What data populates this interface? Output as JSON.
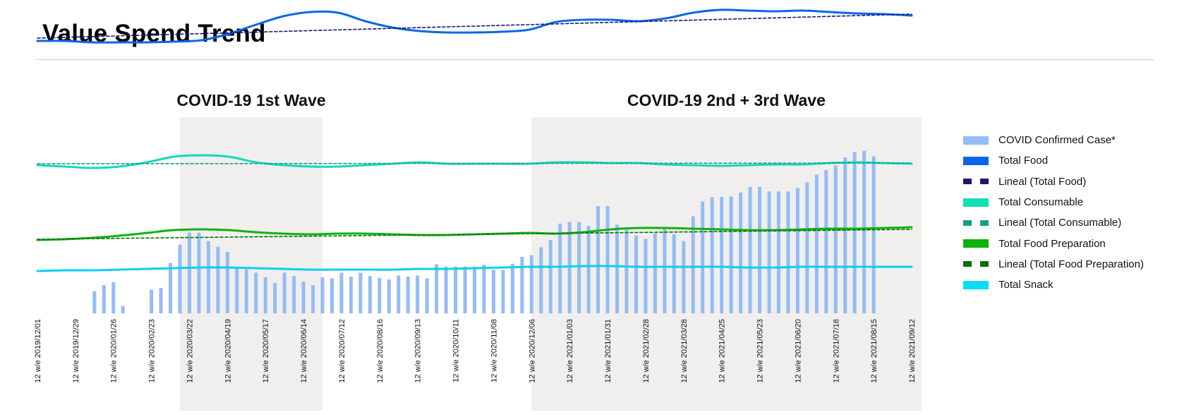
{
  "title": "Value Spend Trend",
  "chart_data": {
    "type": "bar+line",
    "title": "Value Spend Trend",
    "xlabel": "",
    "ylabel": "",
    "grid": false,
    "legend_position": "right",
    "shaded_periods": [
      {
        "label": "COVID-19 1st Wave",
        "start": "2020/03/15",
        "end": "2020/06/28"
      },
      {
        "label": "COVID-19 2nd + 3rd Wave",
        "start": "2020/11/29",
        "end": "2021/09/12"
      }
    ],
    "tick_labels": [
      "12 w/e 2019/12/01",
      "12 w/e 2019/12/29",
      "12 w/e 2020/01/26",
      "12 w/e 2020/02/23",
      "12 w/e 2020/03/22",
      "12 w/e 2020/04/19",
      "12 w/e 2020/05/17",
      "12 w/e 2020/06/14",
      "12 w/e 2020/07/12",
      "12 w/e 2020/08/16",
      "12 w/e 2020/09/13",
      "12 w/e 2020/10/11",
      "12 w/e 2020/11/08",
      "12 w/e 2020/12/06",
      "12 w/e 2021/01/03",
      "12 w/e 2021/01/31",
      "12 w/e 2021/02/28",
      "12 w/e 2021/03/28",
      "12 w/e 2021/04/25",
      "12 w/e 2021/05/23",
      "12 w/e 2021/06/20",
      "12 w/e 2021/07/18",
      "12 w/e 2021/08/15",
      "12 w/e 2021/09/12"
    ],
    "week_count": 93,
    "bar_series": {
      "name": "COVID Confirmed Case*",
      "color": "#94bcf6",
      "start_week": 6,
      "values": [
        39,
        50,
        55,
        13,
        0,
        0,
        42,
        45,
        89,
        122,
        143,
        143,
        128,
        118,
        109,
        80,
        78,
        72,
        64,
        54,
        72,
        66,
        56,
        50,
        64,
        62,
        72,
        65,
        72,
        66,
        63,
        60,
        67,
        65,
        67,
        62,
        87,
        83,
        83,
        83,
        83,
        86,
        77,
        77,
        88,
        100,
        103,
        117,
        130,
        159,
        162,
        162,
        155,
        190,
        190,
        157,
        148,
        138,
        132,
        142,
        150,
        140,
        128,
        172,
        198,
        206,
        206,
        207,
        214,
        224,
        224,
        216,
        216,
        216,
        222,
        232,
        246,
        254,
        262,
        276,
        286,
        288,
        278
      ]
    },
    "line_series": [
      {
        "name": "Total Food",
        "color": "#0a66e8",
        "values": [
          172,
          172,
          170,
          170,
          170,
          171,
          173,
          182,
          195,
          207,
          213,
          212,
          200,
          191,
          186,
          184,
          184,
          185,
          188,
          199,
          202,
          202,
          200,
          204,
          212,
          216,
          215,
          214,
          215,
          213,
          211,
          210,
          208
        ]
      },
      {
        "name": "Lineal (Total Food)",
        "color": "#1a1a6e",
        "dashed": true,
        "values": [
          176,
          210
        ]
      },
      {
        "name": "Total Consumable",
        "color": "#12d9b6",
        "values": [
          88,
          86,
          84,
          86,
          92,
          100,
          102,
          100,
          92,
          88,
          86,
          86,
          88,
          90,
          92,
          90,
          90,
          90,
          90,
          92,
          92,
          91,
          91,
          89,
          88,
          87,
          88,
          89,
          89,
          91,
          92,
          91,
          90
        ]
      },
      {
        "name": "Lineal (Total Consumable)",
        "color": "#12a08a",
        "dashed": true,
        "values": [
          90,
          91
        ]
      },
      {
        "name": "Total Food Preparation",
        "color": "#0ab40a",
        "values": [
          34,
          35,
          37,
          40,
          44,
          48,
          49,
          48,
          45,
          43,
          42,
          43,
          43,
          42,
          41,
          41,
          42,
          43,
          44,
          43,
          45,
          49,
          51,
          51,
          50,
          49,
          48,
          48,
          49,
          50,
          50,
          51,
          52
        ]
      },
      {
        "name": "Lineal (Total Food Preparation)",
        "color": "#067006",
        "dashed": true,
        "values": [
          35,
          49
        ]
      },
      {
        "name": "Total Snack",
        "color": "#09d0f0",
        "values": [
          0,
          1,
          1,
          2,
          3,
          4,
          5,
          5,
          4,
          3,
          2,
          2,
          2,
          2,
          3,
          3,
          4,
          5,
          6,
          6,
          7,
          7,
          6,
          6,
          6,
          6,
          5,
          5,
          6,
          6,
          6,
          6,
          6
        ]
      }
    ]
  },
  "legend": [
    {
      "label": "COVID Confirmed Case*",
      "color": "#94bcf6",
      "style": "solid"
    },
    {
      "label": "Total Food",
      "color": "#0a66e8",
      "style": "solid"
    },
    {
      "label": "Lineal (Total Food)",
      "color": "#1a1a6e",
      "style": "dash"
    },
    {
      "label": "Total Consumable",
      "color": "#12e0b2",
      "style": "solid"
    },
    {
      "label": "Lineal (Total Consumable)",
      "color": "#12a08a",
      "style": "dash"
    },
    {
      "label": "Total Food Preparation",
      "color": "#0ab40a",
      "style": "solid"
    },
    {
      "label": "Lineal (Total Food Preparation)",
      "color": "#067006",
      "style": "dash"
    },
    {
      "label": "Total Snack",
      "color": "#09dcf5",
      "style": "solid"
    }
  ]
}
